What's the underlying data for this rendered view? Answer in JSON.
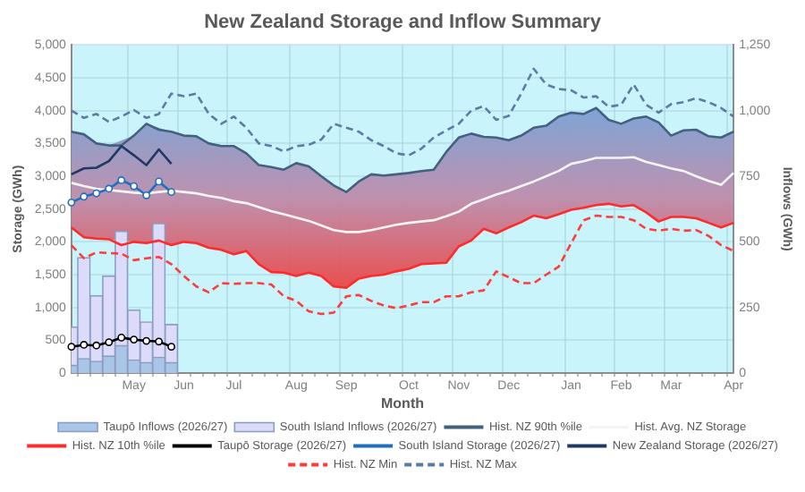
{
  "chart_data": {
    "type": "line",
    "title": "New Zealand Storage and Inflow Summary",
    "xlabel": "Month",
    "ylabel": "Storage (GWh)",
    "y2label": "Inflows (GWh)",
    "categories": [
      null,
      null,
      null,
      null,
      null,
      "May",
      null,
      null,
      null,
      "Jun",
      null,
      null,
      null,
      "Jul",
      null,
      null,
      null,
      null,
      "Aug",
      null,
      null,
      null,
      "Sep",
      null,
      null,
      null,
      null,
      "Oct",
      null,
      null,
      null,
      "Nov",
      null,
      null,
      null,
      "Dec",
      null,
      null,
      null,
      null,
      "Jan",
      null,
      null,
      null,
      "Feb",
      null,
      null,
      null,
      "Mar",
      null,
      null,
      null,
      null,
      "Apr"
    ],
    "ylim": [
      0,
      5000
    ],
    "yticks": [
      {
        "value": 0,
        "label": "0"
      },
      {
        "value": 500,
        "label": "500"
      },
      {
        "value": 1000,
        "label": "1,000"
      },
      {
        "value": 1500,
        "label": "1,500"
      },
      {
        "value": 2000,
        "label": "2,000"
      },
      {
        "value": 2500,
        "label": "2,500"
      },
      {
        "value": 3000,
        "label": "3,000"
      },
      {
        "value": 3500,
        "label": "3,500"
      },
      {
        "value": 4000,
        "label": "4,000"
      },
      {
        "value": 4500,
        "label": "4,500"
      },
      {
        "value": 5000,
        "label": "5,000"
      }
    ],
    "y2lim": [
      0,
      1250
    ],
    "y2ticks": [
      0,
      250,
      500,
      750,
      {
        "value": 1000,
        "label": "1,000"
      },
      {
        "value": 1250,
        "label": "1,250"
      }
    ],
    "grid": true,
    "legend": "bottom",
    "series": [
      {
        "name": "Taupō Inflows (2026/27)",
        "type": "bar",
        "axis": "y2",
        "color": "#a9c6e8",
        "values": [
          30,
          55,
          45,
          65,
          105,
          50,
          40,
          60,
          40,
          null,
          null,
          null,
          null,
          null,
          null,
          null,
          null,
          null,
          null,
          null,
          null,
          null,
          null,
          null,
          null,
          null,
          null,
          null,
          null,
          null,
          null,
          null,
          null,
          null,
          null,
          null,
          null,
          null,
          null,
          null,
          null,
          null,
          null,
          null,
          null,
          null,
          null,
          null,
          null,
          null,
          null,
          null,
          null,
          null
        ]
      },
      {
        "name": "South Island Inflows (2026/27)",
        "type": "bar",
        "axis": "y2",
        "color": "#dcdcfa",
        "values": [
          175,
          440,
          295,
          370,
          540,
          240,
          195,
          570,
          185,
          null,
          null,
          null,
          null,
          null,
          null,
          null,
          null,
          null,
          null,
          null,
          null,
          null,
          null,
          null,
          null,
          null,
          null,
          null,
          null,
          null,
          null,
          null,
          null,
          null,
          null,
          null,
          null,
          null,
          null,
          null,
          null,
          null,
          null,
          null,
          null,
          null,
          null,
          null,
          null,
          null,
          null,
          null,
          null,
          null
        ]
      },
      {
        "name": "Hist. NZ 90th %ile",
        "color": "#44607f",
        "marker": "none",
        "line_style": "solid",
        "values": [
          3680,
          3640,
          3500,
          3470,
          3470,
          3620,
          3800,
          3710,
          3680,
          3620,
          3610,
          3500,
          3460,
          3460,
          3350,
          3170,
          3140,
          3100,
          3200,
          3150,
          3000,
          2860,
          2760,
          2920,
          3030,
          3010,
          3030,
          3050,
          3080,
          3100,
          3370,
          3590,
          3650,
          3600,
          3590,
          3550,
          3620,
          3740,
          3770,
          3910,
          3970,
          3950,
          4040,
          3860,
          3800,
          3880,
          3910,
          3820,
          3620,
          3700,
          3710,
          3610,
          3590,
          3680
        ]
      },
      {
        "name": "Hist. Avg. NZ Storage",
        "color": "#f4f4f4",
        "marker": "none",
        "line_style": "solid",
        "values": [
          2900,
          2850,
          2810,
          2790,
          2770,
          2750,
          2740,
          2760,
          2780,
          2760,
          2740,
          2700,
          2670,
          2620,
          2590,
          2530,
          2470,
          2420,
          2370,
          2320,
          2250,
          2180,
          2150,
          2150,
          2180,
          2220,
          2260,
          2290,
          2310,
          2330,
          2390,
          2460,
          2580,
          2650,
          2720,
          2780,
          2850,
          2920,
          3000,
          3080,
          3190,
          3230,
          3280,
          3280,
          3280,
          3290,
          3220,
          3170,
          3120,
          3080,
          3000,
          2930,
          2870,
          3050
        ],
        "upper": [
          3680,
          3640,
          3500,
          3470,
          null,
          3620,
          3800,
          null,
          3680,
          3620,
          3610,
          3500,
          3460,
          3460,
          3350,
          3170,
          3140,
          3100,
          3200,
          3150,
          3000,
          2860,
          2760,
          2920,
          3030,
          3010,
          3030,
          3050,
          3080,
          3100,
          3370,
          3590,
          3650,
          3600,
          3590,
          3550,
          3620,
          3740,
          3770,
          3910,
          3970,
          3950,
          4040,
          3860,
          3800,
          3880,
          3910,
          3820,
          3620,
          3700,
          3710,
          3610,
          3590,
          3680
        ],
        "lower": [
          2220,
          2070,
          2050,
          2040,
          null,
          2000,
          1980,
          null,
          1950,
          2000,
          1980,
          1910,
          1880,
          1810,
          1860,
          1660,
          1540,
          1530,
          1480,
          1530,
          1480,
          1320,
          1300,
          1440,
          1480,
          1500,
          1550,
          1590,
          1660,
          1670,
          1680,
          1930,
          2020,
          2200,
          2130,
          2220,
          2300,
          2400,
          2360,
          2420,
          2490,
          2520,
          2560,
          2580,
          2540,
          2560,
          2450,
          2310,
          2380,
          2380,
          2360,
          2290,
          2220,
          2290
        ]
      },
      {
        "name": "Hist. NZ 10th %ile",
        "color": "#ff2a2a",
        "marker": "none",
        "line_style": "solid",
        "values": [
          2220,
          2070,
          2050,
          2040,
          1950,
          2000,
          1980,
          2020,
          1950,
          2000,
          1980,
          1910,
          1880,
          1810,
          1860,
          1660,
          1540,
          1530,
          1480,
          1530,
          1480,
          1320,
          1300,
          1440,
          1480,
          1500,
          1550,
          1590,
          1660,
          1670,
          1680,
          1930,
          2020,
          2200,
          2130,
          2220,
          2300,
          2400,
          2360,
          2420,
          2490,
          2520,
          2560,
          2580,
          2540,
          2560,
          2450,
          2310,
          2380,
          2380,
          2360,
          2290,
          2220,
          2290
        ]
      },
      {
        "name": "Taupō Storage (2026/27)",
        "color": "#000000",
        "marker": "circle",
        "line_style": "solid",
        "values": [
          400,
          430,
          420,
          470,
          540,
          510,
          490,
          480,
          400,
          null,
          null,
          null,
          null,
          null,
          null,
          null,
          null,
          null,
          null,
          null,
          null,
          null,
          null,
          null,
          null,
          null,
          null,
          null,
          null,
          null,
          null,
          null,
          null,
          null,
          null,
          null,
          null,
          null,
          null,
          null,
          null,
          null,
          null,
          null,
          null,
          null,
          null,
          null,
          null,
          null,
          null,
          null,
          null,
          null
        ]
      },
      {
        "name": "South Island Storage (2026/27)",
        "color": "#1f6fc0",
        "marker": "circle",
        "line_style": "solid",
        "values": [
          2600,
          2690,
          2740,
          2810,
          2940,
          2850,
          2710,
          2920,
          2760,
          null,
          null,
          null,
          null,
          null,
          null,
          null,
          null,
          null,
          null,
          null,
          null,
          null,
          null,
          null,
          null,
          null,
          null,
          null,
          null,
          null,
          null,
          null,
          null,
          null,
          null,
          null,
          null,
          null,
          null,
          null,
          null,
          null,
          null,
          null,
          null,
          null,
          null,
          null,
          null,
          null,
          null,
          null,
          null,
          null
        ]
      },
      {
        "name": "New Zealand Storage (2026/27)",
        "color": "#1f3864",
        "marker": "none",
        "line_style": "solid",
        "values": [
          3030,
          3120,
          3130,
          3230,
          3460,
          3320,
          3170,
          3410,
          3190,
          null,
          null,
          null,
          null,
          null,
          null,
          null,
          null,
          null,
          null,
          null,
          null,
          null,
          null,
          null,
          null,
          null,
          null,
          null,
          null,
          null,
          null,
          null,
          null,
          null,
          null,
          null,
          null,
          null,
          null,
          null,
          null,
          null,
          null,
          null,
          null,
          null,
          null,
          null,
          null,
          null,
          null,
          null,
          null,
          null
        ]
      },
      {
        "name": "Hist. NZ Min",
        "color": "#ff3b3b",
        "marker": "none",
        "line_style": "dashed",
        "values": [
          1950,
          1750,
          1840,
          1830,
          1820,
          1720,
          1750,
          1770,
          1660,
          1480,
          1320,
          1230,
          1370,
          1360,
          1370,
          1370,
          1350,
          1170,
          1100,
          940,
          900,
          920,
          1170,
          1190,
          1100,
          1030,
          990,
          1030,
          1080,
          1080,
          1170,
          1170,
          1230,
          1260,
          1550,
          1460,
          1370,
          1370,
          1500,
          1620,
          1980,
          2330,
          2400,
          2380,
          2380,
          2330,
          2200,
          2170,
          2200,
          2170,
          2180,
          2090,
          1950,
          1860
        ]
      },
      {
        "name": "Hist. NZ Max",
        "color": "#5b7ba6",
        "marker": "none",
        "line_style": "dashed",
        "values": [
          4000,
          3890,
          3950,
          3830,
          3910,
          4010,
          3890,
          3950,
          4260,
          4220,
          4260,
          3950,
          3800,
          3910,
          3740,
          3500,
          3460,
          3380,
          3460,
          3480,
          3560,
          3800,
          3740,
          3680,
          3550,
          3460,
          3350,
          3320,
          3420,
          3590,
          3700,
          3800,
          4000,
          4070,
          3860,
          3920,
          4260,
          4640,
          4400,
          4330,
          4310,
          4200,
          4220,
          4060,
          4090,
          4400,
          4090,
          3970,
          4100,
          4130,
          4190,
          4130,
          4040,
          3910
        ]
      }
    ]
  }
}
